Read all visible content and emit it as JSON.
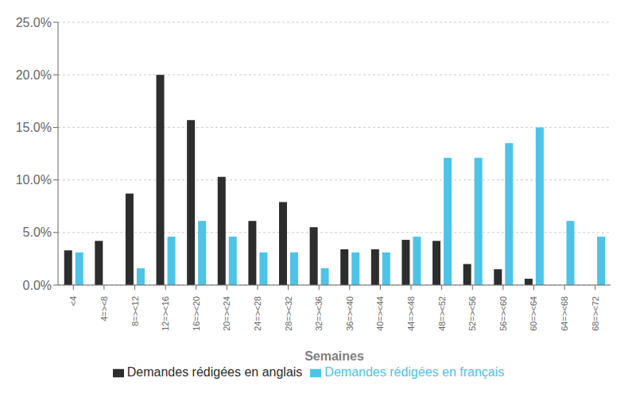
{
  "chart_data": {
    "type": "bar",
    "categories": [
      "<4",
      "4=><8",
      "8=><12",
      "12=><16",
      "16=><20",
      "20=><24",
      "24=><28",
      "28=><32",
      "32=><36",
      "36=><40",
      "40=><44",
      "44=><48",
      "48=><52",
      "52=><56",
      "56=><60",
      "60=><64",
      "64=><68",
      "68=><72"
    ],
    "series": [
      {
        "name": "Demandes rédigées en anglais",
        "color": "#2d2d2d",
        "values": [
          3.3,
          4.2,
          8.7,
          20.0,
          15.7,
          10.3,
          6.1,
          7.9,
          5.5,
          3.4,
          3.4,
          4.3,
          4.2,
          2.0,
          1.5,
          0.6,
          0.0,
          0.0
        ]
      },
      {
        "name": "Demandes rédigées en français",
        "color": "#4dc3e8",
        "values": [
          3.1,
          0.0,
          1.6,
          4.6,
          6.1,
          4.6,
          3.1,
          3.1,
          1.6,
          3.1,
          3.1,
          4.6,
          12.1,
          12.1,
          13.5,
          15.0,
          6.1,
          4.6
        ]
      }
    ],
    "xlabel": "Semaines",
    "ylim": [
      0,
      25.0
    ],
    "yticks": [
      {
        "value": 0.0,
        "label": "0.0%"
      },
      {
        "value": 5.0,
        "label": "5.0%"
      },
      {
        "value": 10.0,
        "label": "10.0%"
      },
      {
        "value": 15.0,
        "label": "15.0%"
      },
      {
        "value": 20.0,
        "label": "20.0%"
      },
      {
        "value": 25.0,
        "label": "25.0%"
      }
    ],
    "grid": true,
    "legend": "bottom"
  }
}
